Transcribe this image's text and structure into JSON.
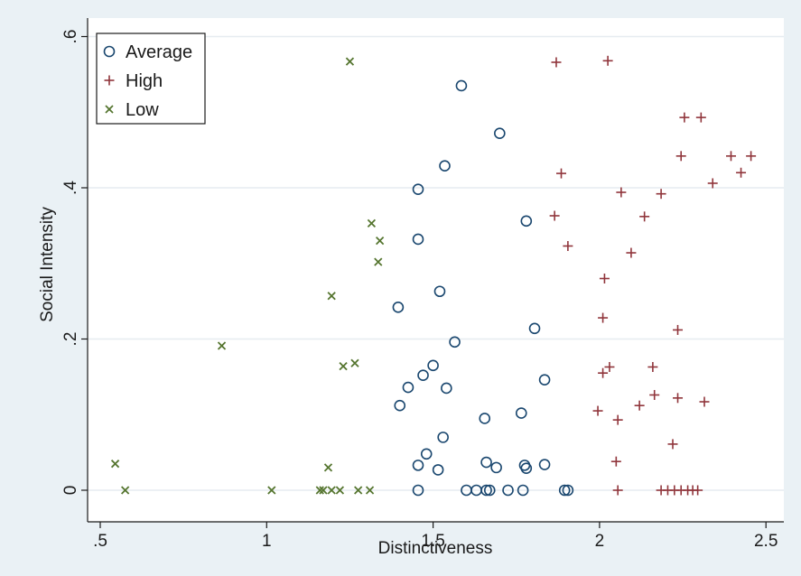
{
  "chart_data": {
    "type": "scatter",
    "title": "",
    "xlabel": "Distinctiveness",
    "ylabel": "Social Intensity",
    "xlim": [
      0.5,
      2.5
    ],
    "ylim": [
      0,
      0.6
    ],
    "xticks": [
      0.5,
      1,
      1.5,
      2,
      2.5
    ],
    "xtick_labels": [
      ".5",
      "1",
      "1.5",
      "2",
      "2.5"
    ],
    "yticks": [
      0,
      0.2,
      0.4,
      0.6
    ],
    "ytick_labels": [
      "0",
      ".2",
      ".4",
      ".6"
    ],
    "grid": true,
    "legend_position": "top-left",
    "series": [
      {
        "name": "Average",
        "marker": "circle",
        "color": "#1a476f",
        "points": [
          [
            1.585,
            0.535
          ],
          [
            1.7,
            0.472
          ],
          [
            1.535,
            0.429
          ],
          [
            1.455,
            0.398
          ],
          [
            1.78,
            0.356
          ],
          [
            1.455,
            0.332
          ],
          [
            1.52,
            0.263
          ],
          [
            1.395,
            0.242
          ],
          [
            1.805,
            0.214
          ],
          [
            1.565,
            0.196
          ],
          [
            1.47,
            0.152
          ],
          [
            1.5,
            0.165
          ],
          [
            1.425,
            0.136
          ],
          [
            1.54,
            0.135
          ],
          [
            1.835,
            0.146
          ],
          [
            1.4,
            0.112
          ],
          [
            1.655,
            0.095
          ],
          [
            1.765,
            0.102
          ],
          [
            1.53,
            0.07
          ],
          [
            1.48,
            0.048
          ],
          [
            1.455,
            0.033
          ],
          [
            1.515,
            0.027
          ],
          [
            1.66,
            0.037
          ],
          [
            1.69,
            0.03
          ],
          [
            1.775,
            0.033
          ],
          [
            1.78,
            0.029
          ],
          [
            1.835,
            0.034
          ],
          [
            1.455,
            0.0
          ],
          [
            1.6,
            0.0
          ],
          [
            1.63,
            0.0
          ],
          [
            1.66,
            0.0
          ],
          [
            1.67,
            0.0
          ],
          [
            1.725,
            0.0
          ],
          [
            1.77,
            0.0
          ],
          [
            1.895,
            0.0
          ],
          [
            1.905,
            0.0
          ]
        ]
      },
      {
        "name": "High",
        "marker": "plus",
        "color": "#90353b",
        "points": [
          [
            1.87,
            0.566
          ],
          [
            2.025,
            0.568
          ],
          [
            2.255,
            0.493
          ],
          [
            2.305,
            0.493
          ],
          [
            2.395,
            0.442
          ],
          [
            2.455,
            0.442
          ],
          [
            2.245,
            0.442
          ],
          [
            2.425,
            0.42
          ],
          [
            1.885,
            0.419
          ],
          [
            2.34,
            0.406
          ],
          [
            2.065,
            0.394
          ],
          [
            2.185,
            0.392
          ],
          [
            1.865,
            0.363
          ],
          [
            2.135,
            0.362
          ],
          [
            1.905,
            0.323
          ],
          [
            2.095,
            0.314
          ],
          [
            2.015,
            0.28
          ],
          [
            2.01,
            0.228
          ],
          [
            2.235,
            0.212
          ],
          [
            2.16,
            0.163
          ],
          [
            2.03,
            0.163
          ],
          [
            2.01,
            0.155
          ],
          [
            2.165,
            0.126
          ],
          [
            2.235,
            0.122
          ],
          [
            2.315,
            0.117
          ],
          [
            2.12,
            0.112
          ],
          [
            1.995,
            0.105
          ],
          [
            2.055,
            0.093
          ],
          [
            2.22,
            0.061
          ],
          [
            2.05,
            0.038
          ],
          [
            2.055,
            0.0
          ],
          [
            2.185,
            0.0
          ],
          [
            2.205,
            0.0
          ],
          [
            2.225,
            0.0
          ],
          [
            2.245,
            0.0
          ],
          [
            2.265,
            0.0
          ],
          [
            2.28,
            0.0
          ],
          [
            2.295,
            0.0
          ]
        ]
      },
      {
        "name": "Low",
        "marker": "x",
        "color": "#55752f",
        "points": [
          [
            1.25,
            0.567
          ],
          [
            1.315,
            0.353
          ],
          [
            1.34,
            0.33
          ],
          [
            1.335,
            0.302
          ],
          [
            1.195,
            0.257
          ],
          [
            0.865,
            0.191
          ],
          [
            1.265,
            0.168
          ],
          [
            1.23,
            0.164
          ],
          [
            0.545,
            0.035
          ],
          [
            1.185,
            0.03
          ],
          [
            0.575,
            0.0
          ],
          [
            1.015,
            0.0
          ],
          [
            1.16,
            0.0
          ],
          [
            1.17,
            0.0
          ],
          [
            1.195,
            0.0
          ],
          [
            1.22,
            0.0
          ],
          [
            1.275,
            0.0
          ],
          [
            1.31,
            0.0
          ]
        ]
      }
    ]
  }
}
